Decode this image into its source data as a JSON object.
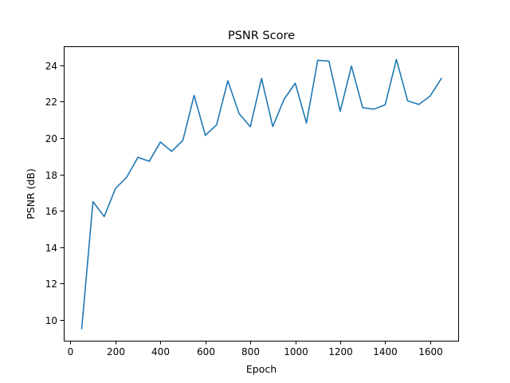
{
  "chart_data": {
    "type": "line",
    "title": "PSNR Score",
    "xlabel": "Epoch",
    "ylabel": "PSNR (dB)",
    "xlim": [
      -30,
      1725
    ],
    "ylim": [
      8.85,
      25.05
    ],
    "xticks": [
      0,
      200,
      400,
      600,
      800,
      1000,
      1200,
      1400,
      1600
    ],
    "yticks": [
      10,
      12,
      14,
      16,
      18,
      20,
      22,
      24
    ],
    "grid": false,
    "legend": "none",
    "series": [
      {
        "color": "#1f77b4",
        "x": [
          50,
          100,
          150,
          200,
          250,
          300,
          350,
          400,
          450,
          500,
          550,
          600,
          650,
          700,
          750,
          800,
          850,
          900,
          950,
          1000,
          1050,
          1100,
          1150,
          1200,
          1250,
          1300,
          1350,
          1400,
          1450,
          1500,
          1550,
          1600,
          1650
        ],
        "y": [
          9.52,
          16.5,
          15.68,
          17.22,
          17.85,
          18.94,
          18.72,
          19.78,
          19.27,
          19.87,
          22.35,
          20.15,
          20.73,
          23.15,
          21.35,
          20.62,
          23.28,
          20.63,
          22.13,
          23.02,
          20.83,
          24.28,
          24.23,
          21.47,
          23.96,
          21.67,
          21.59,
          21.83,
          24.33,
          22.05,
          21.85,
          22.31,
          23.28
        ]
      }
    ]
  }
}
